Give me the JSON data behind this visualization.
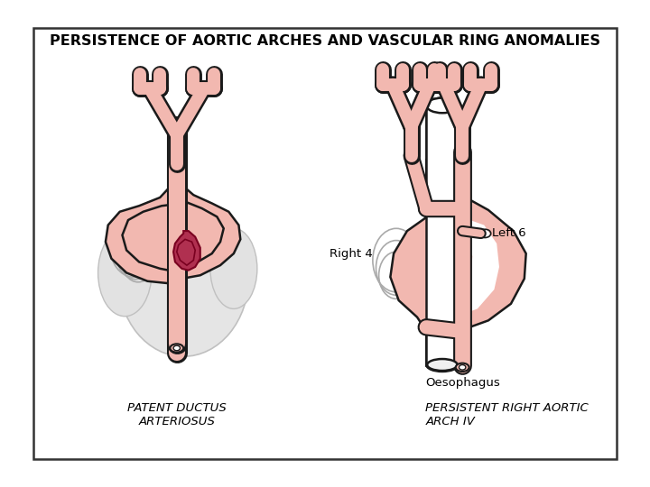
{
  "title": "PERSISTENCE OF AORTIC ARCHES AND VASCULAR RING ANOMALIES",
  "label_left": "PATENT DUCTUS\nARTERIOSUS",
  "label_right": "PERSISTENT RIGHT AORTIC\nARCH IV",
  "label_right4": "Right 4",
  "label_left6": "Left 6",
  "label_oesophagus": "Oesophagus",
  "pink": "#F2B8B0",
  "dark_pink": "#B03050",
  "outline": "#1a1a1a",
  "gray_arch": "#aaaaaa",
  "white": "#ffffff",
  "title_fontsize": 11.5,
  "label_fontsize": 9.5,
  "caption_fontsize": 9.5
}
